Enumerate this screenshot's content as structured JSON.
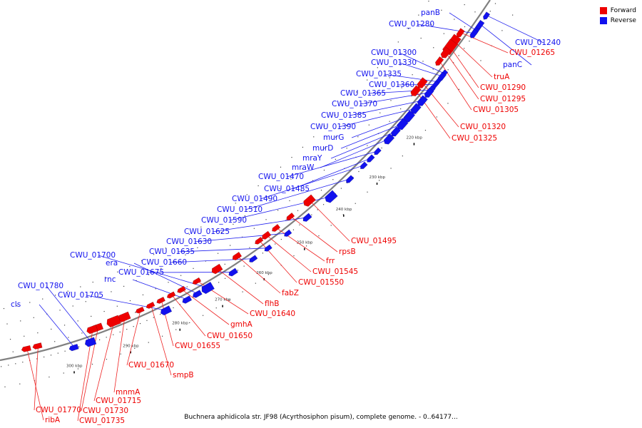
{
  "legend": {
    "items": [
      {
        "label": "Forward",
        "color": "#ee0000"
      },
      {
        "label": "Reverse",
        "color": "#1111ee"
      }
    ]
  },
  "caption": "Buchnera aphidicola str. JF98 (Acyrthosiphon pisum), complete genome. - 0..64177...",
  "ticks": [
    "220 kbp",
    "230 kbp",
    "240 kbp",
    "250 kbp",
    "260 kbp",
    "270 kbp",
    "280 kbp",
    "290 kbp",
    "300 kbp"
  ],
  "colors": {
    "forward": "#ee0000",
    "reverse": "#1111ee",
    "backbone": "#808080",
    "forward_line": "#ee2222",
    "reverse_line": "#2222ee"
  },
  "genes": {
    "forward": [
      "CWU_01265",
      "truA",
      "CWU_01290",
      "CWU_01295",
      "CWU_01305",
      "CWU_01320",
      "CWU_01325",
      "CWU_01495",
      "rpsB",
      "frr",
      "CWU_01545",
      "CWU_01550",
      "fabZ",
      "flhB",
      "CWU_01640",
      "gmhA",
      "CWU_01650",
      "CWU_01655",
      "smpB",
      "CWU_01670",
      "mnmA",
      "CWU_01715",
      "CWU_01730",
      "CWU_01735",
      "CWU_01770",
      "ribA"
    ],
    "reverse": [
      "panB",
      "CWU_01280",
      "CWU_01240",
      "panC",
      "CWU_01300",
      "CWU_01330",
      "CWU_01335",
      "CWU_01360",
      "CWU_01365",
      "CWU_01370",
      "CWU_01385",
      "CWU_01390",
      "murG",
      "murD",
      "mraY",
      "mraW",
      "CWU_01470",
      "CWU_01485",
      "CWU_01490",
      "CWU_01510",
      "CWU_01590",
      "CWU_01625",
      "CWU_01630",
      "CWU_01635",
      "CWU_01660",
      "CWU_01675",
      "CWU_01700",
      "era",
      "rnc",
      "CWU_01705",
      "CWU_01780",
      "cls"
    ]
  }
}
